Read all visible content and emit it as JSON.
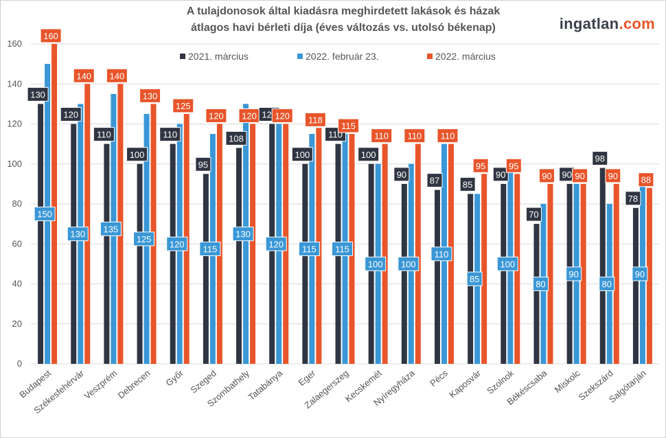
{
  "title_line1": "A tulajdonosok által kiadásra meghirdetett lakások és házak",
  "title_line2": "átlagos havi bérleti díja (éves változás vs. utolsó békenap)",
  "logo": {
    "main": "ingatlan",
    "suffix": ".com"
  },
  "colors": {
    "s1": "#2f3542",
    "s2": "#3a97d6",
    "s3": "#e8552a",
    "grid": "#d9d9d9"
  },
  "chart_data": {
    "type": "bar",
    "title": "A tulajdonosok által kiadásra meghirdetett lakások és házak átlagos havi bérleti díja (éves változás vs. utolsó békenap)",
    "categories": [
      "Budapest",
      "Székesfehérvár",
      "Veszprém",
      "Debrecen",
      "Győr",
      "Szeged",
      "Szombathely",
      "Tatabánya",
      "Eger",
      "Zalaegerszeg",
      "Kecskemét",
      "Nyíregyháza",
      "Pécs",
      "Kaposvár",
      "Szolnok",
      "Békéscsaba",
      "Miskolc",
      "Szekszárd",
      "Salgótarján"
    ],
    "series": [
      {
        "name": "2021. március",
        "values": [
          130,
          120,
          110,
          100,
          110,
          95,
          108,
          120,
          100,
          110,
          100,
          90,
          87,
          85,
          90,
          70,
          90,
          98,
          78
        ]
      },
      {
        "name": "2022. február 23.",
        "values": [
          150,
          130,
          135,
          125,
          120,
          115,
          130,
          120,
          115,
          115,
          100,
          100,
          110,
          85,
          100,
          80,
          90,
          80,
          90
        ]
      },
      {
        "name": "2022. március",
        "values": [
          160,
          140,
          140,
          130,
          125,
          120,
          120,
          120,
          118,
          115,
          110,
          110,
          110,
          95,
          95,
          90,
          90,
          90,
          88
        ]
      }
    ],
    "ylim": [
      0,
      160
    ],
    "yticks": [
      0,
      20,
      40,
      60,
      80,
      100,
      120,
      140,
      160
    ],
    "xlabel": "",
    "ylabel": "",
    "legend": "top",
    "grid": true
  }
}
